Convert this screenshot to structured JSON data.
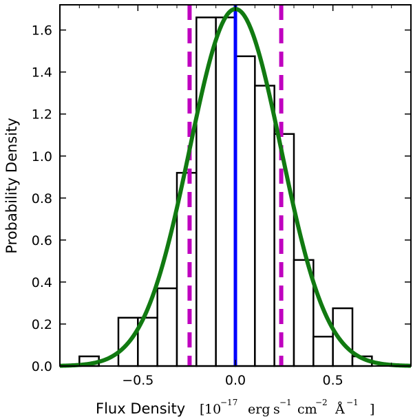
{
  "chart_data": {
    "type": "histogram",
    "title": "",
    "xlabel": "Flux Density",
    "ylabel": "Probability Density",
    "xunit": {
      "open": "[",
      "base": "10",
      "exp_base": "−17",
      "erg": "erg",
      "s": "s",
      "exp_s": "−1",
      "cm": "cm",
      "exp_cm": "−2",
      "angstrom": "Å",
      "exp_angstrom": "−1",
      "close": "]"
    },
    "xlim": [
      -0.9,
      0.9
    ],
    "ylim": [
      0.0,
      1.72
    ],
    "xticks": [
      -0.5,
      0.0,
      0.5
    ],
    "xtick_labels": [
      "−0.5",
      "0.0",
      "0.5"
    ],
    "yticks": [
      0.0,
      0.2,
      0.4,
      0.6,
      0.8,
      1.0,
      1.2,
      1.4,
      1.6
    ],
    "ytick_labels": [
      "0.0",
      "0.2",
      "0.4",
      "0.6",
      "0.8",
      "1.0",
      "1.2",
      "1.4",
      "1.6"
    ],
    "bins": [
      {
        "x0": -0.8,
        "x1": -0.7,
        "height": 0.046
      },
      {
        "x0": -0.6,
        "x1": -0.5,
        "height": 0.23
      },
      {
        "x0": -0.5,
        "x1": -0.4,
        "height": 0.23
      },
      {
        "x0": -0.4,
        "x1": -0.3,
        "height": 0.37
      },
      {
        "x0": -0.3,
        "x1": -0.2,
        "height": 0.92
      },
      {
        "x0": -0.2,
        "x1": -0.1,
        "height": 1.66
      },
      {
        "x0": -0.1,
        "x1": 0.0,
        "height": 1.66
      },
      {
        "x0": 0.0,
        "x1": 0.1,
        "height": 1.475
      },
      {
        "x0": 0.1,
        "x1": 0.2,
        "height": 1.335
      },
      {
        "x0": 0.2,
        "x1": 0.3,
        "height": 1.105
      },
      {
        "x0": 0.3,
        "x1": 0.4,
        "height": 0.505
      },
      {
        "x0": 0.4,
        "x1": 0.5,
        "height": 0.14
      },
      {
        "x0": 0.5,
        "x1": 0.6,
        "height": 0.275
      },
      {
        "x0": 0.6,
        "x1": 0.7,
        "height": 0.046
      }
    ],
    "gaussian_fit": {
      "mean": 0.0,
      "sigma": 0.235,
      "peak": 1.7,
      "color": "#117a11"
    },
    "mean_line": {
      "x": 0.0,
      "color": "#0000ff"
    },
    "sigma_lines": {
      "x": [
        -0.235,
        0.235
      ],
      "color": "#bf00bf"
    }
  }
}
